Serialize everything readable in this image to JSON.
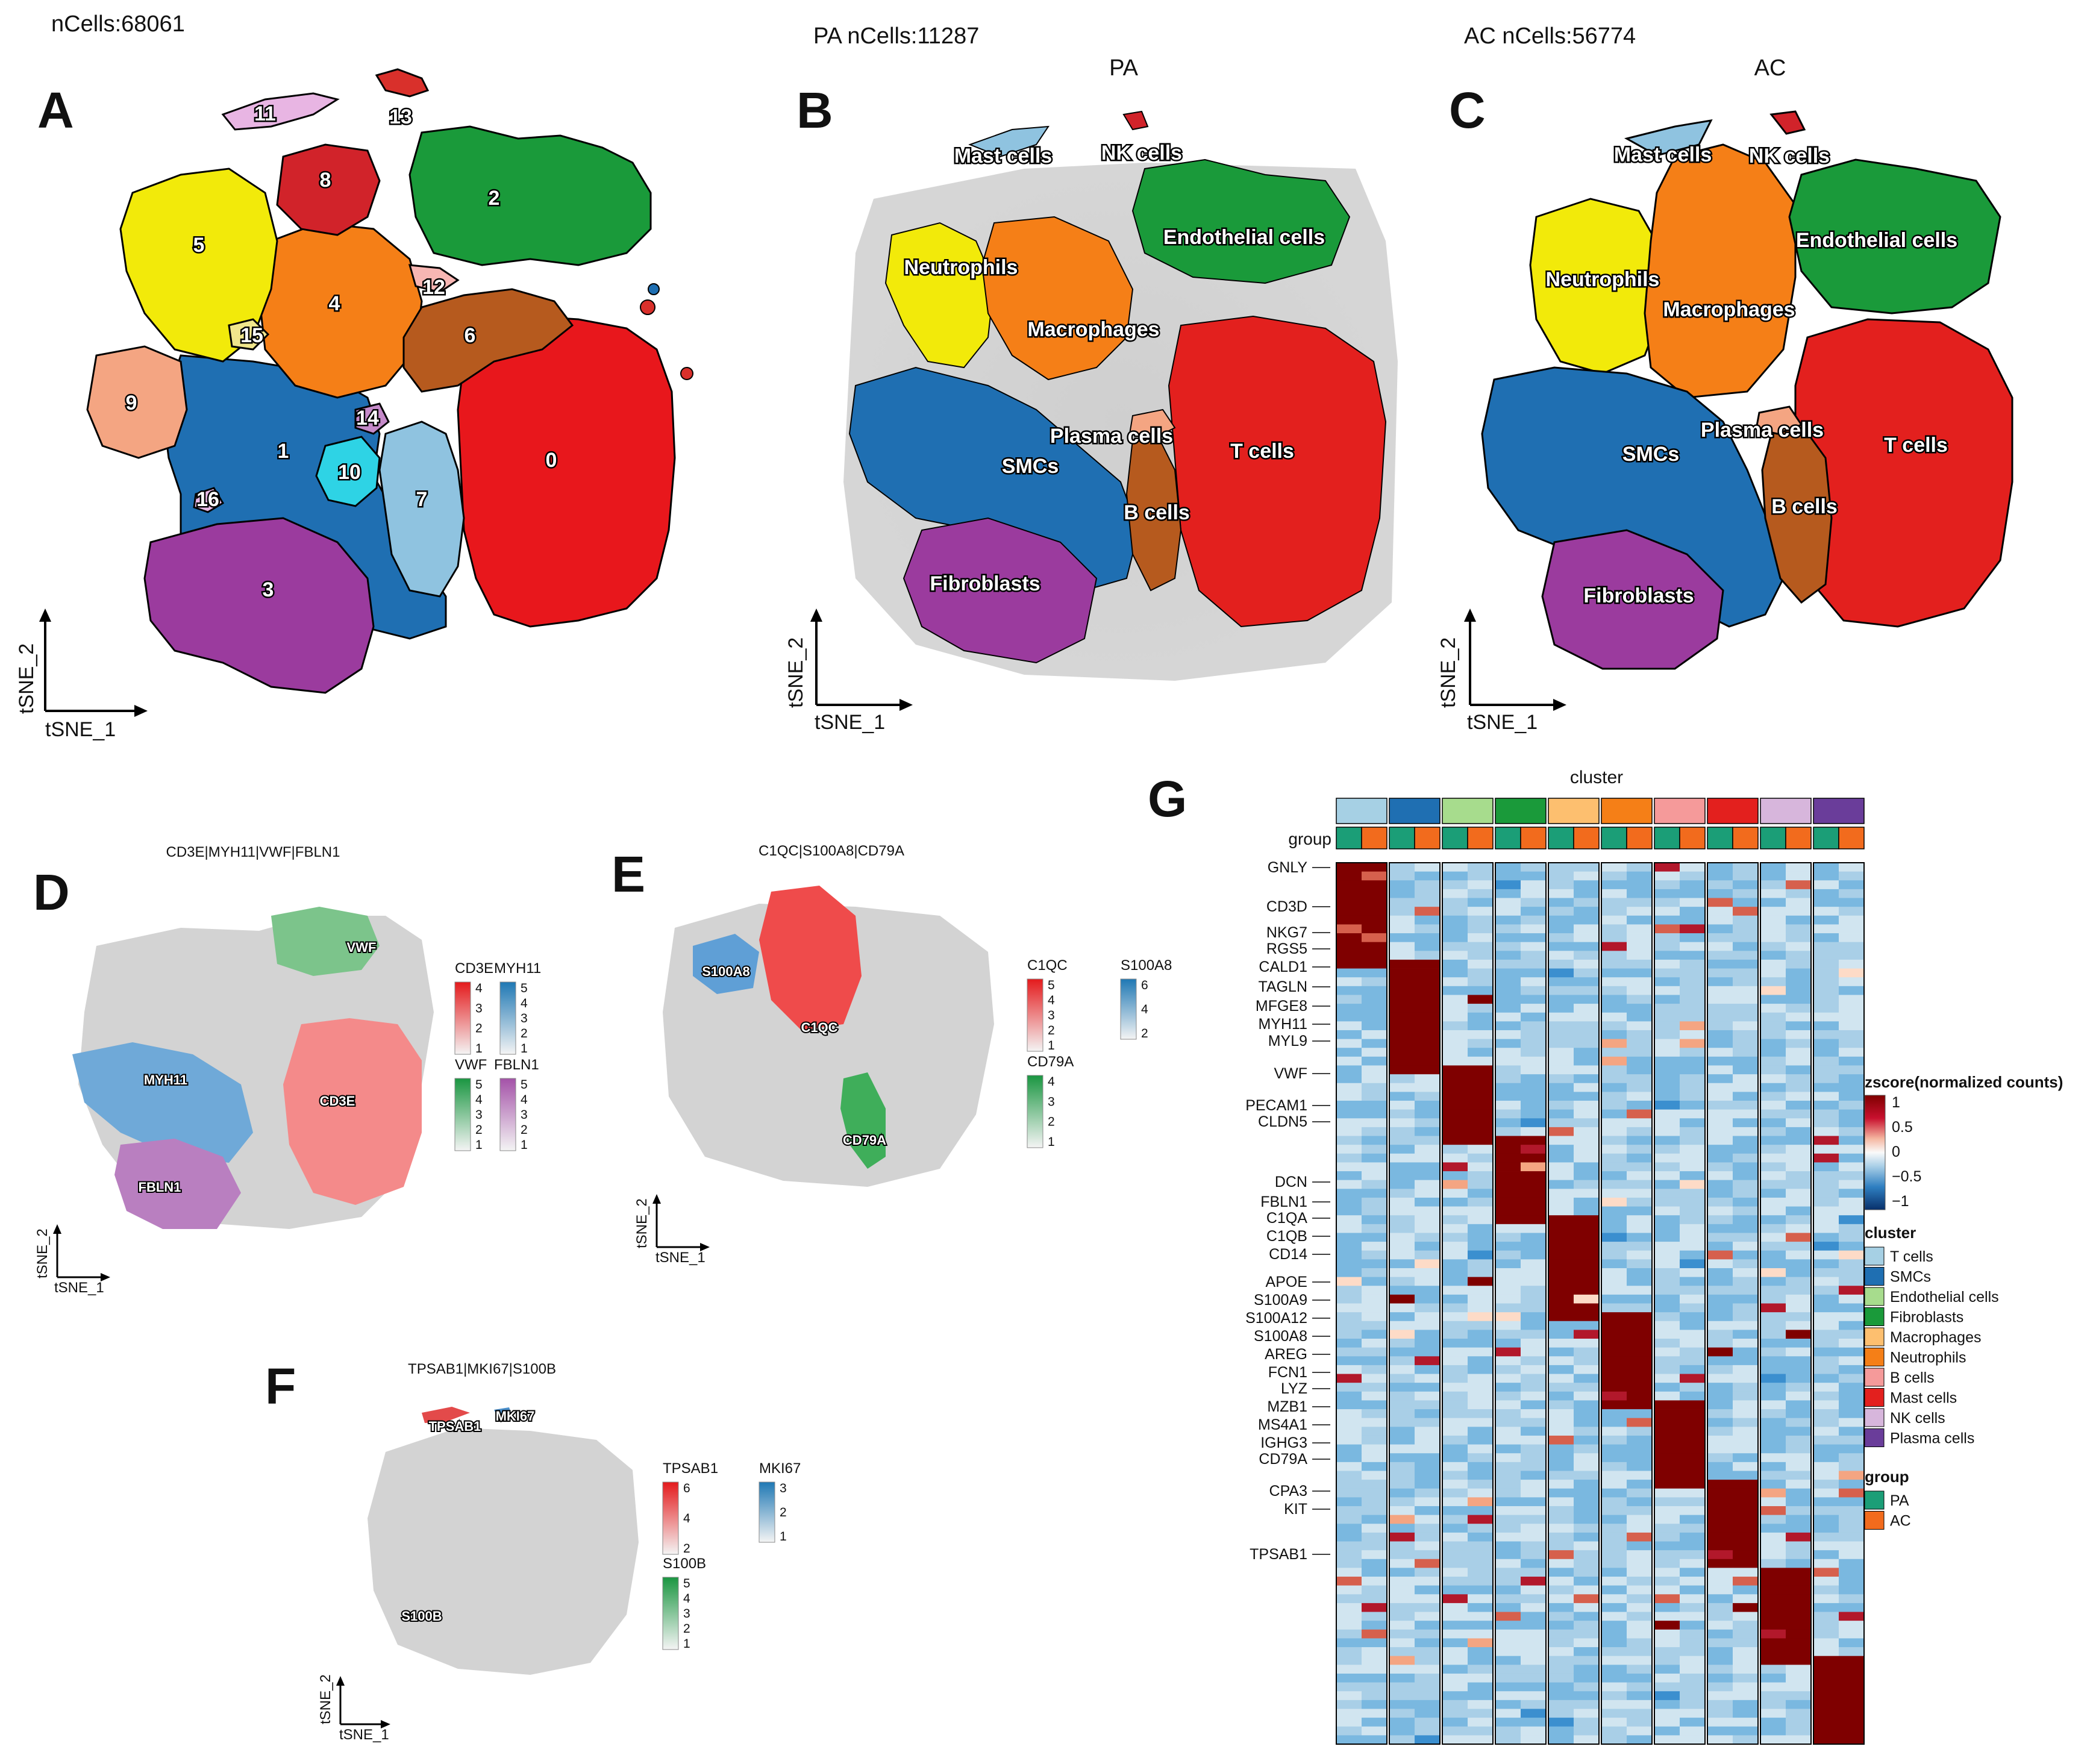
{
  "panels": {
    "A": {
      "letter": "A",
      "header": "nCells:68061",
      "axis_x": "tSNE_1",
      "axis_y": "tSNE_2",
      "clusters": [
        "0",
        "1",
        "2",
        "3",
        "4",
        "5",
        "6",
        "7",
        "8",
        "9",
        "10",
        "11",
        "12",
        "13",
        "14",
        "15",
        "16"
      ]
    },
    "B": {
      "letter": "B",
      "header": "PA nCells:11287",
      "subtitle": "PA",
      "axis_x": "tSNE_1",
      "axis_y": "tSNE_2",
      "cell_types": [
        "Mast cells",
        "NK cells",
        "Endothelial cells",
        "Neutrophils",
        "Macrophages",
        "Plasma cells",
        "T cells",
        "SMCs",
        "B cells",
        "Fibroblasts"
      ]
    },
    "C": {
      "letter": "C",
      "header": "AC nCells:56774",
      "subtitle": "AC",
      "axis_x": "tSNE_1",
      "axis_y": "tSNE_2",
      "cell_types": [
        "Mast cells",
        "NK cells",
        "Endothelial cells",
        "Neutrophils",
        "Macrophages",
        "Plasma cells",
        "T cells",
        "SMCs",
        "B cells",
        "Fibroblasts"
      ]
    },
    "D": {
      "letter": "D",
      "title": "CD3E|MYH11|VWF|FBLN1",
      "axis_x": "tSNE_1",
      "axis_y": "tSNE_2",
      "markers": [
        "VWF",
        "MYH11",
        "CD3E",
        "FBLN1"
      ],
      "legends": [
        {
          "name": "CD3E",
          "ticks": [
            "4",
            "3",
            "2",
            "1"
          ],
          "color": "#e41a1c"
        },
        {
          "name": "MYH11",
          "ticks": [
            "5",
            "4",
            "3",
            "2",
            "1"
          ],
          "color": "#1f78b4"
        },
        {
          "name": "VWF",
          "ticks": [
            "5",
            "4",
            "3",
            "2",
            "1"
          ],
          "color": "#1a9641"
        },
        {
          "name": "FBLN1",
          "ticks": [
            "5",
            "4",
            "3",
            "2",
            "1"
          ],
          "color": "#a452a8"
        }
      ]
    },
    "E": {
      "letter": "E",
      "title": "C1QC|S100A8|CD79A",
      "axis_x": "tSNE_1",
      "axis_y": "tSNE_2",
      "markers": [
        "S100A8",
        "C1QC",
        "CD79A"
      ],
      "legends": [
        {
          "name": "C1QC",
          "ticks": [
            "5",
            "4",
            "3",
            "2",
            "1"
          ],
          "color": "#e41a1c"
        },
        {
          "name": "S100A8",
          "ticks": [
            "6",
            "4",
            "2"
          ],
          "color": "#1f78b4"
        },
        {
          "name": "CD79A",
          "ticks": [
            "4",
            "3",
            "2",
            "1"
          ],
          "color": "#1a9641"
        }
      ]
    },
    "F": {
      "letter": "F",
      "title": "TPSAB1|MKI67|S100B",
      "axis_x": "tSNE_1",
      "axis_y": "tSNE_2",
      "markers": [
        "TPSAB1",
        "MKI67",
        "S100B"
      ],
      "legends": [
        {
          "name": "TPSAB1",
          "ticks": [
            "6",
            "4",
            "2"
          ],
          "color": "#e41a1c"
        },
        {
          "name": "MKI67",
          "ticks": [
            "3",
            "2",
            "1"
          ],
          "color": "#1f78b4"
        },
        {
          "name": "S100B",
          "ticks": [
            "5",
            "4",
            "3",
            "2",
            "1"
          ],
          "color": "#1a9641"
        }
      ]
    },
    "G": {
      "letter": "G",
      "title": "cluster",
      "group_label": "group"
    }
  },
  "chart_data": [
    {
      "type": "scatter",
      "panel": "A",
      "title": "nCells:68061",
      "xlabel": "tSNE_1",
      "ylabel": "tSNE_2",
      "series": [
        "0",
        "1",
        "2",
        "3",
        "4",
        "5",
        "6",
        "7",
        "8",
        "9",
        "10",
        "11",
        "12",
        "13",
        "14",
        "15",
        "16"
      ]
    },
    {
      "type": "scatter",
      "panel": "B",
      "title": "PA",
      "xlabel": "tSNE_1",
      "ylabel": "tSNE_2",
      "series": [
        "Mast cells",
        "NK cells",
        "Endothelial cells",
        "Neutrophils",
        "Macrophages",
        "Plasma cells",
        "T cells",
        "SMCs",
        "B cells",
        "Fibroblasts"
      ]
    },
    {
      "type": "scatter",
      "panel": "C",
      "title": "AC",
      "xlabel": "tSNE_1",
      "ylabel": "tSNE_2",
      "series": [
        "Mast cells",
        "NK cells",
        "Endothelial cells",
        "Neutrophils",
        "Macrophages",
        "Plasma cells",
        "T cells",
        "SMCs",
        "B cells",
        "Fibroblasts"
      ]
    },
    {
      "type": "scatter",
      "panel": "D",
      "title": "CD3E|MYH11|VWF|FBLN1",
      "xlabel": "tSNE_1",
      "ylabel": "tSNE_2",
      "series": [
        {
          "name": "CD3E",
          "max": 4
        },
        {
          "name": "MYH11",
          "max": 5
        },
        {
          "name": "VWF",
          "max": 5
        },
        {
          "name": "FBLN1",
          "max": 5
        }
      ]
    },
    {
      "type": "scatter",
      "panel": "E",
      "title": "C1QC|S100A8|CD79A",
      "xlabel": "tSNE_1",
      "ylabel": "tSNE_2",
      "series": [
        {
          "name": "C1QC",
          "max": 5
        },
        {
          "name": "S100A8",
          "max": 6
        },
        {
          "name": "CD79A",
          "max": 4
        }
      ]
    },
    {
      "type": "scatter",
      "panel": "F",
      "title": "TPSAB1|MKI67|S100B",
      "xlabel": "tSNE_1",
      "ylabel": "tSNE_2",
      "series": [
        {
          "name": "TPSAB1",
          "max": 6
        },
        {
          "name": "MKI67",
          "max": 3
        },
        {
          "name": "S100B",
          "max": 5
        }
      ]
    },
    {
      "type": "heatmap",
      "panel": "G",
      "title": "cluster",
      "clusters": [
        "T cells",
        "SMCs",
        "Endothelial cells",
        "Fibroblasts",
        "Macrophages",
        "Neutrophils",
        "B cells",
        "Mast cells",
        "NK cells",
        "Plasma cells"
      ],
      "cluster_colors": [
        "#a6d0e4",
        "#1f6fb2",
        "#a7dc8d",
        "#1a9a3a",
        "#fdbf6f",
        "#f57f17",
        "#f59a9a",
        "#e3201e",
        "#d7b6dc",
        "#6a3d9a"
      ],
      "groups": [
        "PA",
        "AC"
      ],
      "group_colors": [
        "#1b9e77",
        "#f26b1d"
      ],
      "gene_labels": [
        "GNLY",
        "CD3D",
        "NKG7",
        "RGS5",
        "CALD1",
        "TAGLN",
        "MFGE8",
        "MYH11",
        "MYL9",
        "VWF",
        "PECAM1",
        "CLDN5",
        "DCN",
        "FBLN1",
        "C1QA",
        "C1QB",
        "CD14",
        "APOE",
        "S100A9",
        "S100A12",
        "S100A8",
        "AREG",
        "FCN1",
        "LYZ",
        "MZB1",
        "MS4A1",
        "IGHG3",
        "CD79A",
        "CPA3",
        "KIT",
        "TPSAB1"
      ],
      "n_rows": 100,
      "color_scale": {
        "title": "zscore(normalized counts)",
        "ticks": [
          "1",
          "0.5",
          "0",
          "−0.5",
          "−1"
        ],
        "min": -1,
        "max": 1
      },
      "cluster_legend_title": "cluster",
      "group_legend_title": "group"
    }
  ]
}
